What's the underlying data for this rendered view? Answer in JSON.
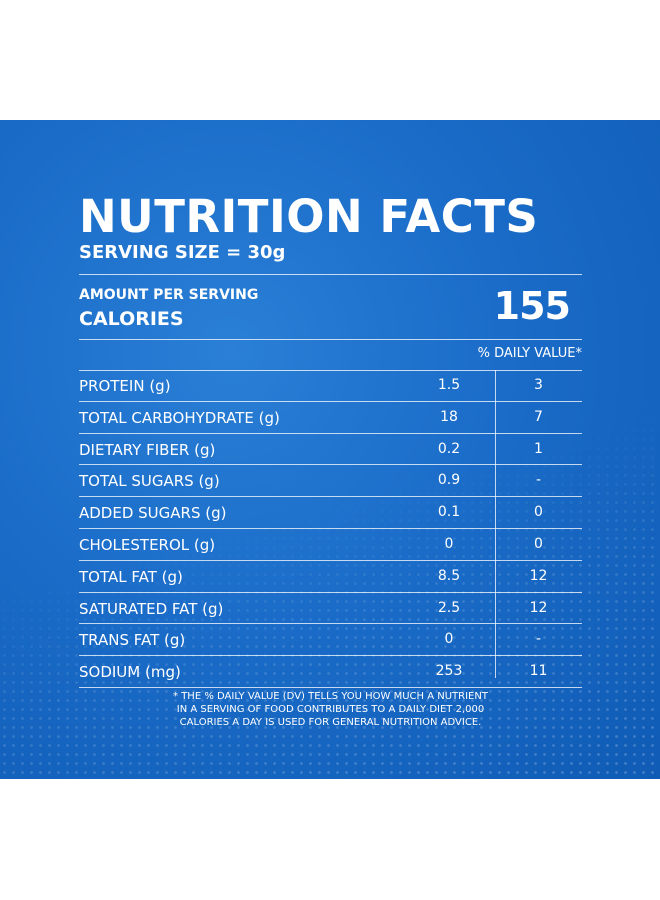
{
  "label": {
    "title": "NUTRITION FACTS",
    "serving_size": "SERVING SIZE = 30g",
    "amount_per_serving": "AMOUNT PER SERVING",
    "calories_label": "CALORIES",
    "calories_value": "155",
    "daily_value_header": "% DAILY VALUE*",
    "nutrients": [
      {
        "name": "PROTEIN (g)",
        "amount": "1.5",
        "dv": "3"
      },
      {
        "name": "TOTAL CARBOHYDRATE (g)",
        "amount": "18",
        "dv": "7"
      },
      {
        "name": "DIETARY FIBER (g)",
        "amount": "0.2",
        "dv": "1"
      },
      {
        "name": "TOTAL SUGARS (g)",
        "amount": "0.9",
        "dv": "-"
      },
      {
        "name": "ADDED SUGARS (g)",
        "amount": "0.1",
        "dv": "0"
      },
      {
        "name": "CHOLESTEROL (g)",
        "amount": "0",
        "dv": "0"
      },
      {
        "name": "TOTAL FAT (g)",
        "amount": "8.5",
        "dv": "12"
      },
      {
        "name": "SATURATED FAT (g)",
        "amount": "2.5",
        "dv": "12"
      },
      {
        "name": "TRANS FAT (g)",
        "amount": "0",
        "dv": "-"
      },
      {
        "name": "SODIUM (mg)",
        "amount": "253",
        "dv": "11"
      }
    ],
    "footnote_lines": [
      "* THE % DAILY VALUE (DV) TELLS YOU HOW MUCH A NUTRIENT",
      "IN A SERVING OF FOOD CONTRIBUTES TO A DAILY DIET 2,000",
      "CALORIES A DAY IS USED FOR GENERAL NUTRITION ADVICE."
    ]
  },
  "colors": {
    "panel_background": "#1a6cc8",
    "text": "#ffffff",
    "page_background": "#ffffff"
  }
}
